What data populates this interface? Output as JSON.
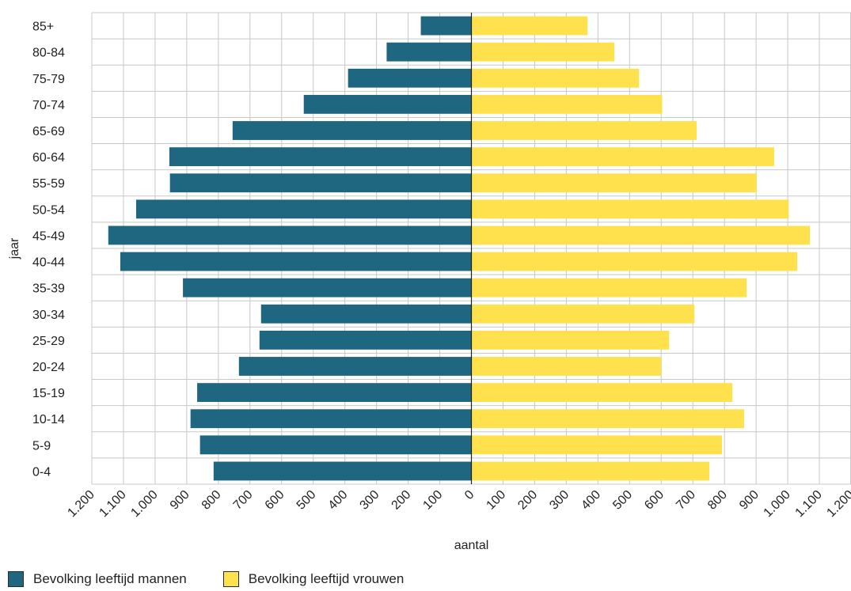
{
  "chart_data": {
    "type": "bar",
    "orientation": "horizontal-population-pyramid",
    "categories": [
      "0-4",
      "5-9",
      "10-14",
      "15-19",
      "20-24",
      "25-29",
      "30-34",
      "35-39",
      "40-44",
      "45-49",
      "50-54",
      "55-59",
      "60-64",
      "65-69",
      "70-74",
      "75-79",
      "80-84",
      "85+"
    ],
    "series": [
      {
        "name": "Bevolking leeftijd mannen",
        "color": "#1f6680",
        "values": [
          815,
          858,
          888,
          867,
          735,
          670,
          665,
          912,
          1110,
          1148,
          1060,
          953,
          955,
          755,
          530,
          390,
          268,
          160
        ]
      },
      {
        "name": "Bevolking leeftijd vrouwen",
        "color": "#ffe14d",
        "values": [
          752,
          792,
          862,
          825,
          600,
          625,
          705,
          870,
          1030,
          1070,
          1003,
          902,
          957,
          712,
          603,
          530,
          452,
          367
        ]
      }
    ],
    "xlabel": "aantal",
    "ylabel": "jaar",
    "xlim": [
      -1200,
      1200
    ],
    "xticks": [
      -1200,
      -1100,
      -1000,
      -900,
      -800,
      -700,
      -600,
      -500,
      -400,
      -300,
      -200,
      -100,
      0,
      100,
      200,
      300,
      400,
      500,
      600,
      700,
      800,
      900,
      1000,
      1100,
      1200
    ],
    "xtick_labels": [
      "1.200",
      "1.100",
      "1.000",
      "900",
      "800",
      "700",
      "600",
      "500",
      "400",
      "300",
      "200",
      "100",
      "0",
      "100",
      "200",
      "300",
      "400",
      "500",
      "600",
      "700",
      "800",
      "900",
      "1.000",
      "1.100",
      "1.200"
    ],
    "grid": true,
    "legend_position": "bottom-left"
  }
}
